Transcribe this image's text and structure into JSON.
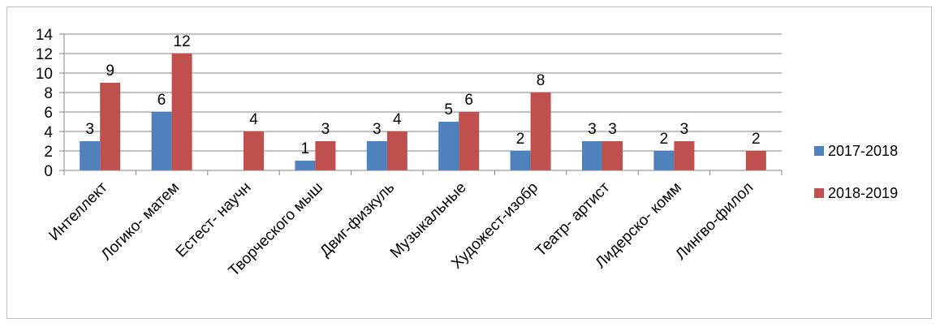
{
  "chart_data": {
    "type": "bar",
    "categories": [
      "Интеллект",
      "Логико- матем",
      "Естест- научн",
      "Творческого мыш",
      "Двиг-физкуль",
      "Музыкальные",
      "Художест-изобр",
      "Театр- артист",
      "Лидерско- комм",
      "Лингво-филол"
    ],
    "series": [
      {
        "name": "2017-2018",
        "color": "#4f81bd",
        "values": [
          3,
          6,
          null,
          1,
          3,
          5,
          2,
          3,
          2,
          null
        ]
      },
      {
        "name": "2018-2019",
        "color": "#c0504d",
        "values": [
          9,
          12,
          4,
          3,
          4,
          6,
          8,
          3,
          3,
          2
        ]
      }
    ],
    "ylim": [
      0,
      14
    ],
    "yticks": [
      0,
      2,
      4,
      6,
      8,
      10,
      12,
      14
    ],
    "grid": true,
    "legend_position": "right"
  }
}
